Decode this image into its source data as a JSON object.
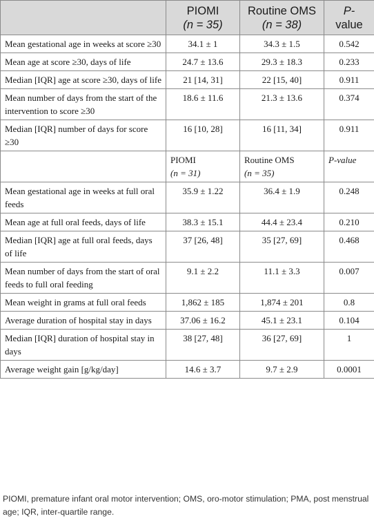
{
  "header": {
    "group1": "PIOMI",
    "group1_n": "(n = 35)",
    "group2": "Routine OMS",
    "group2_n": "(n = 38)",
    "pvalue_line1": "P-",
    "pvalue_line2": "value"
  },
  "section1_rows": [
    {
      "label": "Mean gestational age in weeks at score ≥30",
      "piomi": "34.1 ± 1",
      "oms": "34.3 ± 1.5",
      "p": "0.542"
    },
    {
      "label": "Mean age at score ≥30, days of life",
      "piomi": "24.7 ± 13.6",
      "oms": "29.3 ± 18.3",
      "p": "0.233"
    },
    {
      "label": "Median [IQR] age at score ≥30, days of life",
      "piomi": "21 [14, 31]",
      "oms": "22 [15, 40]",
      "p": "0.911"
    },
    {
      "label": "Mean number of days from the start of the intervention to score ≥30",
      "piomi": "18.6 ± 11.6",
      "oms": "21.3 ± 13.6",
      "p": "0.374"
    },
    {
      "label": "Median [IQR] number of days for score ≥30",
      "piomi": "16 [10, 28]",
      "oms": "16 [11, 34]",
      "p": "0.911"
    }
  ],
  "subheader": {
    "group1": "PIOMI",
    "group1_n": "(n = 31)",
    "group2": "Routine OMS",
    "group2_n": "(n = 35)",
    "pvalue": "P-value"
  },
  "section2_rows": [
    {
      "label": "Mean gestational age in weeks at full oral feeds",
      "piomi": "35.9 ± 1.22",
      "oms": "36.4 ± 1.9",
      "p": "0.248"
    },
    {
      "label": "Mean age at full oral feeds, days of life",
      "piomi": "38.3 ± 15.1",
      "oms": "44.4 ± 23.4",
      "p": "0.210"
    },
    {
      "label": "Median [IQR] age at full oral feeds, days of life",
      "piomi": "37 [26, 48]",
      "oms": "35 [27, 69]",
      "p": "0.468"
    },
    {
      "label": "Mean number of days from the start of oral feeds to full oral feeding",
      "piomi": "9.1 ± 2.2",
      "oms": "11.1 ± 3.3",
      "p": "0.007"
    },
    {
      "label": "Mean weight in grams at full oral feeds",
      "piomi": "1,862 ± 185",
      "oms": "1,874 ± 201",
      "p": "0.8"
    },
    {
      "label": "Average duration of hospital stay in days",
      "piomi": "37.06 ± 16.2",
      "oms": "45.1 ± 23.1",
      "p": "0.104"
    },
    {
      "label": "Median [IQR] duration of hospital stay in days",
      "piomi": "38 [27, 48]",
      "oms": "36 [27, 69]",
      "p": "1"
    },
    {
      "label": "Average weight gain [g/kg/day]",
      "piomi": "14.6 ± 3.7",
      "oms": "9.7 ± 2.9",
      "p": "0.0001"
    }
  ],
  "footnote": "PIOMI, premature infant oral motor intervention; OMS, oro-motor stimulation; PMA, post menstrual age; IQR, inter-quartile range."
}
